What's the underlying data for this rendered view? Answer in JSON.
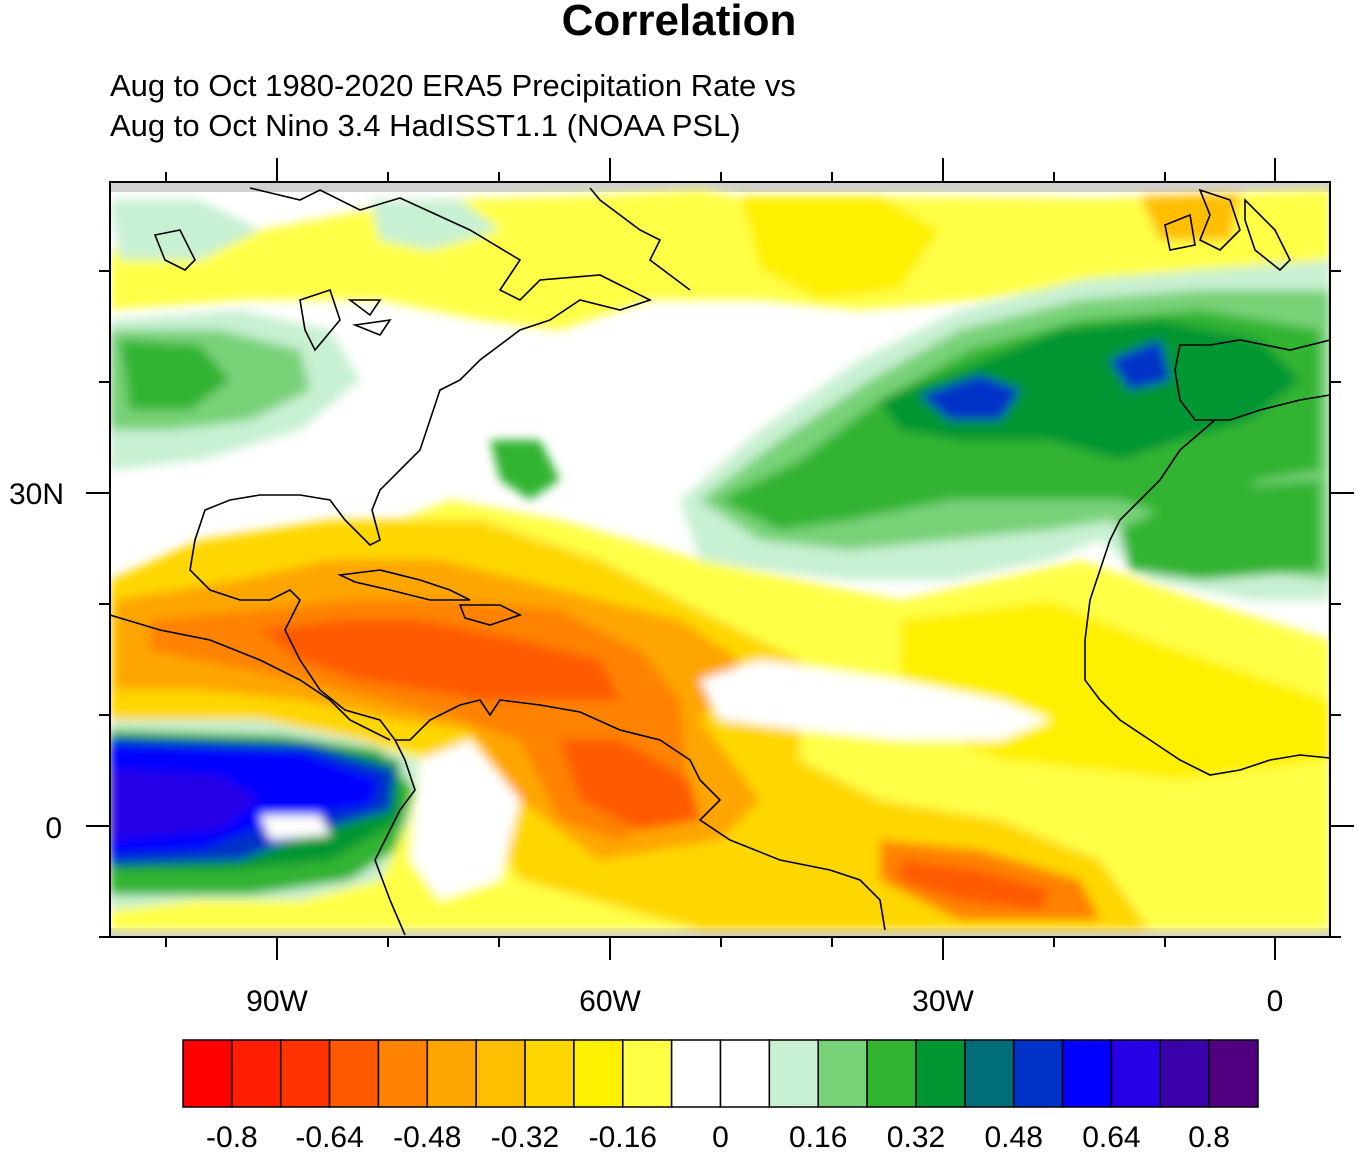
{
  "title": "Correlation",
  "subtitle_line1": "Aug to Oct 1980-2020 ERA5 Precipitation Rate vs",
  "subtitle_line2": "Aug to Oct Nino 3.4 HadISST1.1 (NOAA PSL)",
  "map": {
    "projection": "cylindrical equidistant",
    "lon_range": [
      -105,
      5
    ],
    "lat_range": [
      -10,
      57
    ],
    "x_tick_labels": [
      "90W",
      "60W",
      "30W",
      "0"
    ],
    "y_tick_labels": [
      "30N",
      "0"
    ],
    "missing_data_color": "#d0d0d0",
    "coastline_color": "#000000"
  },
  "colorbar": {
    "colors": [
      "#ff0000",
      "#ff1e00",
      "#ff3200",
      "#ff5a00",
      "#ff8200",
      "#ffa500",
      "#ffbe00",
      "#ffd700",
      "#fff000",
      "#ffff46",
      "#ffffff",
      "#ffffff",
      "#c8f0d2",
      "#78d278",
      "#32b432",
      "#009632",
      "#006e78",
      "#0032c8",
      "#0000ff",
      "#2800e6",
      "#3c00aa",
      "#500080"
    ],
    "labels": [
      "-0.8",
      "-0.64",
      "-0.48",
      "-0.32",
      "-0.16",
      "0",
      "0.16",
      "0.32",
      "0.48",
      "0.64",
      "0.8"
    ],
    "levels": [
      -0.8,
      -0.72,
      -0.64,
      -0.56,
      -0.48,
      -0.4,
      -0.32,
      -0.24,
      -0.16,
      -0.08,
      0,
      0.08,
      0.16,
      0.24,
      0.32,
      0.4,
      0.48,
      0.56,
      0.64,
      0.72,
      0.8
    ]
  }
}
